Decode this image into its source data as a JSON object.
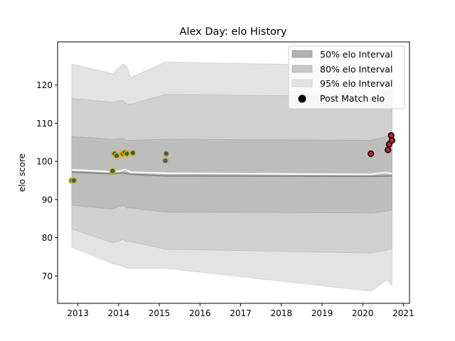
{
  "chart_data": {
    "type": "area",
    "title": "Alex Day: elo History",
    "xlabel": "",
    "ylabel": "elo score",
    "xlim": [
      2012.5,
      2021.15
    ],
    "ylim": [
      62.8,
      131.3
    ],
    "x_ticks": [
      "2013",
      "2014",
      "2015",
      "2016",
      "2017",
      "2018",
      "2019",
      "2020",
      "2021"
    ],
    "y_ticks": [
      70,
      80,
      90,
      100,
      110,
      120
    ],
    "grid": false,
    "legend_position": "top-right",
    "legend": [
      {
        "label": "50% elo Interval",
        "kind": "patch",
        "color": "#b3b3b3"
      },
      {
        "label": "80% elo Interval",
        "kind": "patch",
        "color": "#c6c6c6"
      },
      {
        "label": "95% elo Interval",
        "kind": "patch",
        "color": "#e3e3e3"
      },
      {
        "label": "Post Match elo",
        "kind": "marker",
        "color": "#000000"
      }
    ],
    "bands": {
      "x": [
        2012.85,
        2013.85,
        2014.1,
        2014.2,
        2014.3,
        2015.15,
        2020.2,
        2020.6,
        2020.72
      ],
      "p95_high": [
        125.5,
        123.0,
        125.5,
        125.0,
        122.0,
        126.0,
        125.0,
        125.5,
        125.5
      ],
      "p80_high": [
        116.5,
        115.5,
        116.0,
        115.0,
        115.0,
        117.5,
        117.0,
        118.5,
        119.0
      ],
      "p50_high": [
        106.5,
        105.8,
        106.0,
        105.5,
        105.5,
        105.8,
        105.5,
        106.5,
        106.8
      ],
      "p50_low": [
        88.5,
        87.5,
        88.5,
        87.8,
        87.8,
        86.7,
        86.5,
        87.0,
        87.3
      ],
      "p80_low": [
        82.3,
        78.7,
        79.5,
        79.0,
        79.0,
        77.0,
        76.0,
        76.8,
        77.2
      ],
      "p95_low": [
        77.5,
        73.2,
        72.5,
        72.0,
        72.0,
        72.0,
        66.0,
        69.0,
        67.5
      ]
    },
    "median_line": {
      "x": [
        2012.85,
        2013.85,
        2014.1,
        2014.3,
        2015.15,
        2020.2,
        2020.72
      ],
      "y": [
        97.2,
        96.7,
        97.0,
        96.6,
        96.2,
        96.1,
        96.2
      ],
      "color": "#888888"
    },
    "mean_line": {
      "x": [
        2012.85,
        2013.85,
        2014.05,
        2014.15,
        2014.3,
        2015.15,
        2020.2,
        2020.55,
        2020.72
      ],
      "y": [
        97.8,
        97.3,
        97.5,
        97.9,
        97.2,
        96.9,
        96.6,
        97.1,
        96.8
      ],
      "color": "#ffffff"
    },
    "series": [
      {
        "face_color": "#1a6b5a",
        "edge_color": "#e0a400",
        "points": [
          {
            "x": 2012.85,
            "y": 95.0
          },
          {
            "x": 2012.9,
            "y": 95.0
          },
          {
            "x": 2013.85,
            "y": 97.5
          },
          {
            "x": 2013.9,
            "y": 102.0
          },
          {
            "x": 2013.95,
            "y": 101.5
          },
          {
            "x": 2014.1,
            "y": 102.0
          },
          {
            "x": 2014.15,
            "y": 102.3
          },
          {
            "x": 2014.2,
            "y": 102.0
          },
          {
            "x": 2014.35,
            "y": 102.2
          }
        ]
      },
      {
        "face_color": "#1a6b5a",
        "edge_color": "#d4a050",
        "points": [
          {
            "x": 2015.15,
            "y": 100.2
          },
          {
            "x": 2015.17,
            "y": 102.0
          }
        ]
      },
      {
        "face_color": "#cc2233",
        "edge_color": "#000000",
        "points": [
          {
            "x": 2020.2,
            "y": 102.0
          },
          {
            "x": 2020.62,
            "y": 103.0
          },
          {
            "x": 2020.65,
            "y": 104.5
          },
          {
            "x": 2020.7,
            "y": 106.8
          },
          {
            "x": 2020.72,
            "y": 105.5
          }
        ]
      }
    ]
  }
}
